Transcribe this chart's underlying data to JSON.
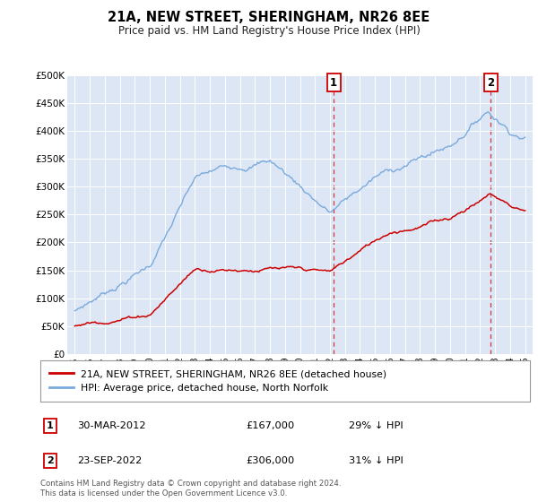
{
  "title": "21A, NEW STREET, SHERINGHAM, NR26 8EE",
  "subtitle": "Price paid vs. HM Land Registry's House Price Index (HPI)",
  "background_color": "#ffffff",
  "plot_bg_color": "#dce6f5",
  "hpi_color": "#7aaadd",
  "price_color": "#cc0000",
  "ylim": [
    0,
    500000
  ],
  "yticks": [
    0,
    50000,
    100000,
    150000,
    200000,
    250000,
    300000,
    350000,
    400000,
    450000,
    500000
  ],
  "ytick_labels": [
    "£0",
    "£50K",
    "£100K",
    "£150K",
    "£200K",
    "£250K",
    "£300K",
    "£350K",
    "£400K",
    "£450K",
    "£500K"
  ],
  "xlim_start": 1994.5,
  "xlim_end": 2025.5,
  "transaction1": {
    "label": "1",
    "date": "30-MAR-2012",
    "price": 167000,
    "below_hpi": "29% ↓ HPI",
    "x_year": 2012.25
  },
  "transaction2": {
    "label": "2",
    "date": "23-SEP-2022",
    "price": 306000,
    "below_hpi": "31% ↓ HPI",
    "x_year": 2022.72
  },
  "legend_line1": "21A, NEW STREET, SHERINGHAM, NR26 8EE (detached house)",
  "legend_line2": "HPI: Average price, detached house, North Norfolk",
  "footnote": "Contains HM Land Registry data © Crown copyright and database right 2024.\nThis data is licensed under the Open Government Licence v3.0.",
  "xtick_years": [
    1995,
    1996,
    1997,
    1998,
    1999,
    2000,
    2001,
    2002,
    2003,
    2004,
    2005,
    2006,
    2007,
    2008,
    2009,
    2010,
    2011,
    2012,
    2013,
    2014,
    2015,
    2016,
    2017,
    2018,
    2019,
    2020,
    2021,
    2022,
    2023,
    2024,
    2025
  ]
}
